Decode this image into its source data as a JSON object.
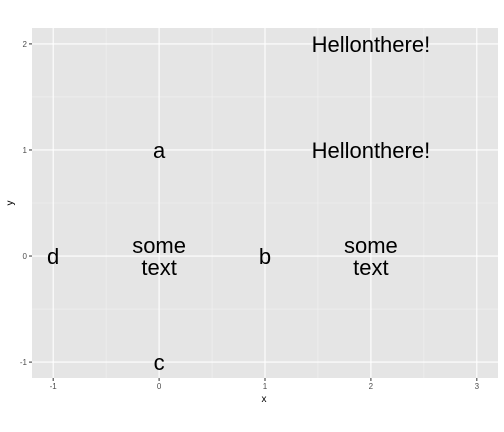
{
  "chart_data": {
    "type": "scatter",
    "title": "",
    "xlabel": "x",
    "ylabel": "y",
    "xlim": [
      -1.2,
      3.2
    ],
    "ylim": [
      -1.15,
      2.15
    ],
    "x_ticks": [
      -1,
      0,
      1,
      2,
      3
    ],
    "y_ticks": [
      -1,
      0,
      1,
      2
    ],
    "x_tick_labels": [
      "-1",
      "0",
      "1",
      "2",
      "3"
    ],
    "y_tick_labels": [
      "-1",
      "0",
      "1",
      "2"
    ],
    "grid": true,
    "points": [
      {
        "x": 0,
        "y": 1,
        "label": [
          "a"
        ]
      },
      {
        "x": 1,
        "y": 0,
        "label": [
          "b"
        ]
      },
      {
        "x": 0,
        "y": -1,
        "label": [
          "c"
        ]
      },
      {
        "x": -1,
        "y": 0,
        "label": [
          "d"
        ]
      },
      {
        "x": 0,
        "y": 0,
        "label": [
          "some",
          "text"
        ]
      },
      {
        "x": 2,
        "y": 0,
        "label": [
          "some",
          "text"
        ]
      },
      {
        "x": 2,
        "y": 1,
        "label": [
          "Hellonthere!"
        ]
      },
      {
        "x": 2,
        "y": 2,
        "label": [
          "Hellonthere!"
        ]
      }
    ]
  },
  "colors": {
    "panel_background": "#e5e5e5",
    "grid_major": "#ffffff",
    "grid_minor": "#f2f2f2",
    "text": "#000000",
    "tick_text": "#4d4d4d"
  }
}
